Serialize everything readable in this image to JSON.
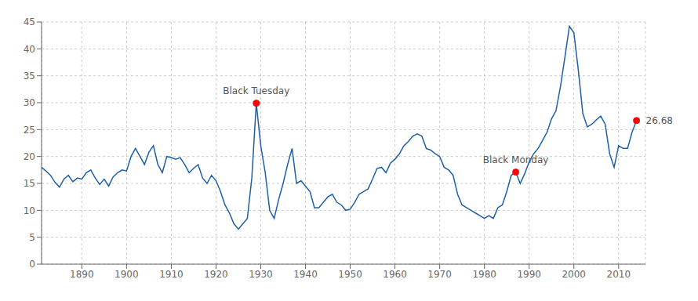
{
  "chart_data": {
    "type": "line",
    "color": "#1f5fa6",
    "grid": true,
    "xlim": [
      1881,
      2016
    ],
    "ylim": [
      0,
      45
    ],
    "xticks": [
      1890,
      1900,
      1910,
      1920,
      1930,
      1940,
      1950,
      1960,
      1970,
      1980,
      1990,
      2000,
      2010
    ],
    "yticks": [
      0,
      5,
      10,
      15,
      20,
      25,
      30,
      35,
      40,
      45
    ],
    "x": [
      1881,
      1882,
      1883,
      1884,
      1885,
      1886,
      1887,
      1888,
      1889,
      1890,
      1891,
      1892,
      1893,
      1894,
      1895,
      1896,
      1897,
      1898,
      1899,
      1900,
      1901,
      1902,
      1903,
      1904,
      1905,
      1906,
      1907,
      1908,
      1909,
      1910,
      1911,
      1912,
      1913,
      1914,
      1915,
      1916,
      1917,
      1918,
      1919,
      1920,
      1921,
      1922,
      1923,
      1924,
      1925,
      1926,
      1927,
      1928,
      1929,
      1930,
      1931,
      1932,
      1933,
      1934,
      1935,
      1936,
      1937,
      1938,
      1939,
      1940,
      1941,
      1942,
      1943,
      1944,
      1945,
      1946,
      1947,
      1948,
      1949,
      1950,
      1951,
      1952,
      1953,
      1954,
      1955,
      1956,
      1957,
      1958,
      1959,
      1960,
      1961,
      1962,
      1963,
      1964,
      1965,
      1966,
      1967,
      1968,
      1969,
      1970,
      1971,
      1972,
      1973,
      1974,
      1975,
      1976,
      1977,
      1978,
      1979,
      1980,
      1981,
      1982,
      1983,
      1984,
      1985,
      1986,
      1987,
      1988,
      1989,
      1990,
      1991,
      1992,
      1993,
      1994,
      1995,
      1996,
      1997,
      1998,
      1999,
      2000,
      2001,
      2002,
      2003,
      2004,
      2005,
      2006,
      2007,
      2008,
      2009,
      2010,
      2011,
      2012,
      2013,
      2014
    ],
    "values": [
      18.0,
      17.3,
      16.5,
      15.2,
      14.3,
      15.8,
      16.5,
      15.3,
      16.0,
      15.8,
      17.0,
      17.5,
      16.0,
      14.8,
      15.8,
      14.5,
      16.2,
      17.0,
      17.5,
      17.3,
      20.0,
      21.5,
      20.0,
      18.5,
      20.8,
      22.0,
      18.5,
      17.0,
      20.0,
      19.8,
      19.5,
      19.8,
      18.5,
      17.0,
      17.8,
      18.5,
      16.0,
      15.0,
      16.5,
      15.5,
      13.5,
      11.0,
      9.5,
      7.5,
      6.5,
      7.5,
      8.5,
      16.0,
      29.9,
      22.0,
      17.0,
      10.0,
      8.5,
      12.0,
      15.0,
      18.5,
      21.5,
      15.0,
      15.5,
      14.5,
      13.5,
      10.5,
      10.5,
      11.5,
      12.5,
      13.0,
      11.5,
      11.0,
      10.0,
      10.2,
      11.5,
      13.0,
      13.5,
      14.0,
      15.8,
      17.8,
      18.0,
      17.0,
      18.8,
      19.5,
      20.5,
      22.0,
      22.8,
      23.8,
      24.2,
      23.8,
      21.5,
      21.2,
      20.5,
      20.0,
      18.0,
      17.5,
      16.5,
      13.0,
      11.0,
      10.5,
      10.0,
      9.5,
      9.0,
      8.5,
      9.0,
      8.5,
      10.5,
      11.0,
      13.5,
      16.5,
      17.1,
      15.0,
      16.8,
      19.0,
      20.5,
      21.5,
      23.0,
      24.5,
      27.0,
      28.5,
      33.0,
      38.5,
      44.2,
      43.0,
      36.0,
      28.0,
      25.5,
      26.0,
      26.8,
      27.5,
      26.0,
      20.5,
      18.0,
      22.0,
      21.5,
      21.5,
      24.5,
      26.68
    ],
    "annotations": [
      {
        "x": 1929,
        "y": 29.9,
        "label": "Black Tuesday",
        "color": "#ff0000"
      },
      {
        "x": 1987,
        "y": 17.1,
        "label": "Black Monday",
        "color": "#ff0000"
      },
      {
        "x": 2014.0,
        "y": 26.68,
        "label": "26.68",
        "color": "#ff0000"
      }
    ]
  }
}
